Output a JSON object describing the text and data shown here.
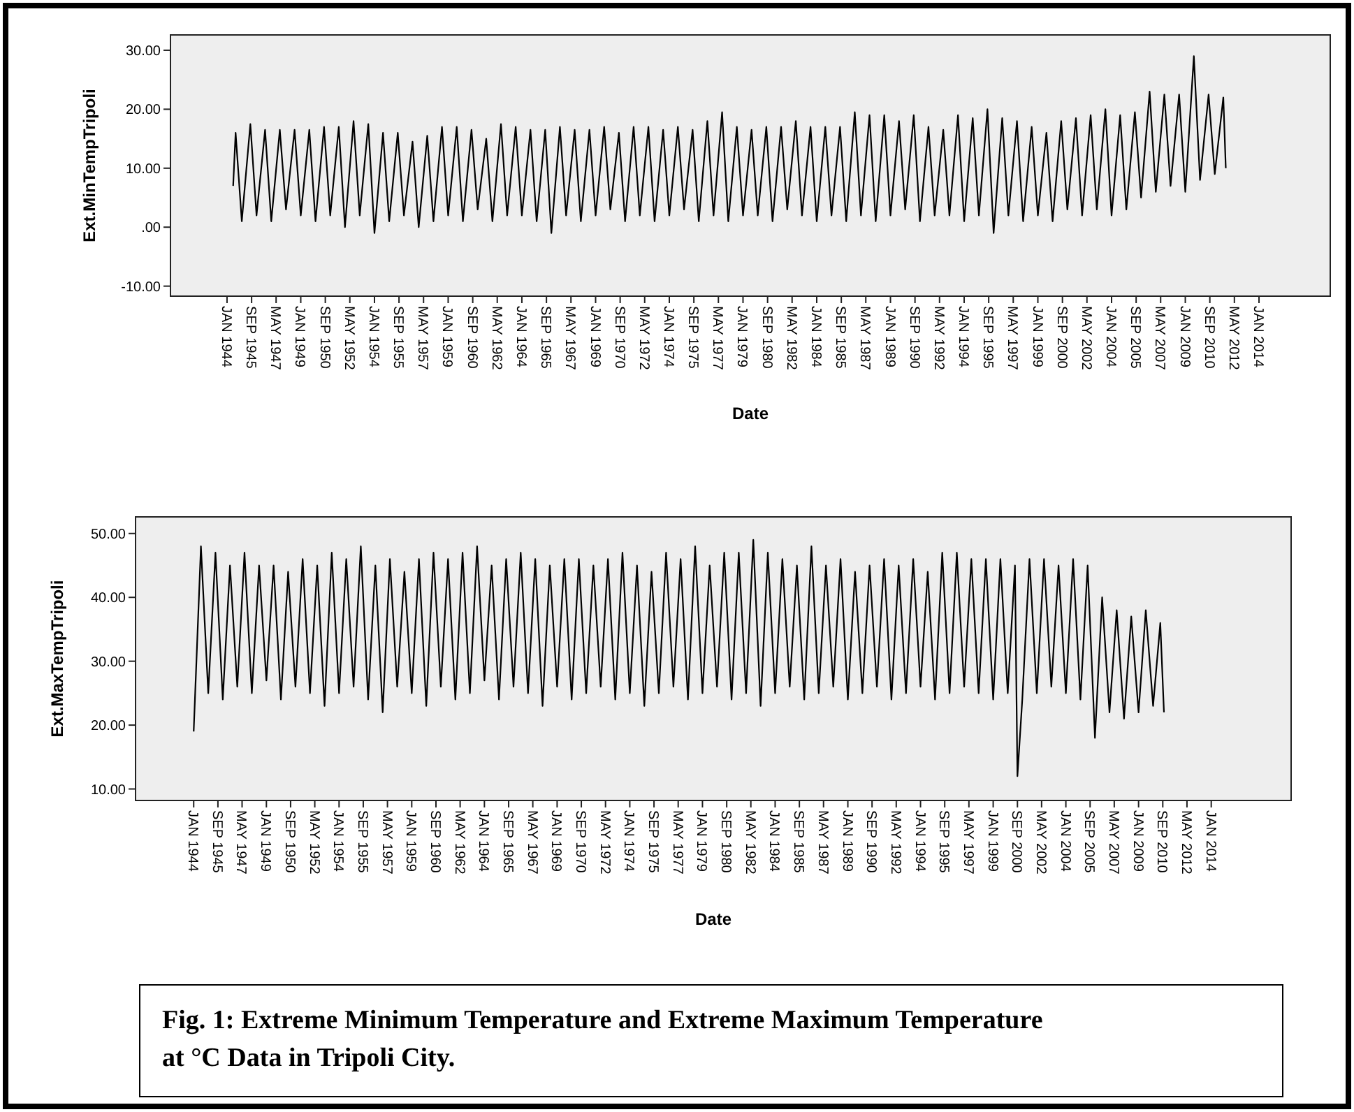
{
  "chart_data": [
    {
      "type": "line",
      "ylabel": "Ext.MinTempTripoli",
      "xlabel": "Date",
      "xlim": [
        "1940-03",
        "2018-11"
      ],
      "ylim": [
        -11.7,
        32.6
      ],
      "yticks": [
        {
          "value": -10,
          "label": "-10.00"
        },
        {
          "value": 0,
          "label": ".00"
        },
        {
          "value": 10,
          "label": "10.00"
        },
        {
          "value": 20,
          "label": "20.00"
        },
        {
          "value": 30,
          "label": "30.00"
        }
      ],
      "xticks": [
        {
          "value": "1944-01",
          "label": "JAN 1944"
        },
        {
          "value": "1945-09",
          "label": "SEP 1945"
        },
        {
          "value": "1947-05",
          "label": "MAY 1947"
        },
        {
          "value": "1949-01",
          "label": "JAN 1949"
        },
        {
          "value": "1950-09",
          "label": "SEP 1950"
        },
        {
          "value": "1952-05",
          "label": "MAY 1952"
        },
        {
          "value": "1954-01",
          "label": "JAN 1954"
        },
        {
          "value": "1955-09",
          "label": "SEP 1955"
        },
        {
          "value": "1957-05",
          "label": "MAY 1957"
        },
        {
          "value": "1959-01",
          "label": "JAN 1959"
        },
        {
          "value": "1960-09",
          "label": "SEP 1960"
        },
        {
          "value": "1962-05",
          "label": "MAY 1962"
        },
        {
          "value": "1964-01",
          "label": "JAN 1964"
        },
        {
          "value": "1965-09",
          "label": "SEP 1965"
        },
        {
          "value": "1967-05",
          "label": "MAY 1967"
        },
        {
          "value": "1969-01",
          "label": "JAN 1969"
        },
        {
          "value": "1970-09",
          "label": "SEP 1970"
        },
        {
          "value": "1972-05",
          "label": "MAY 1972"
        },
        {
          "value": "1974-01",
          "label": "JAN 1974"
        },
        {
          "value": "1975-09",
          "label": "SEP 1975"
        },
        {
          "value": "1977-05",
          "label": "MAY 1977"
        },
        {
          "value": "1979-01",
          "label": "JAN 1979"
        },
        {
          "value": "1980-09",
          "label": "SEP 1980"
        },
        {
          "value": "1982-05",
          "label": "MAY 1982"
        },
        {
          "value": "1984-01",
          "label": "JAN 1984"
        },
        {
          "value": "1985-09",
          "label": "SEP 1985"
        },
        {
          "value": "1987-05",
          "label": "MAY 1987"
        },
        {
          "value": "1989-01",
          "label": "JAN 1989"
        },
        {
          "value": "1990-09",
          "label": "SEP 1990"
        },
        {
          "value": "1992-05",
          "label": "MAY 1992"
        },
        {
          "value": "1994-01",
          "label": "JAN 1994"
        },
        {
          "value": "1995-09",
          "label": "SEP 1995"
        },
        {
          "value": "1997-05",
          "label": "MAY 1997"
        },
        {
          "value": "1999-01",
          "label": "JAN 1999"
        },
        {
          "value": "2000-09",
          "label": "SEP 2000"
        },
        {
          "value": "2002-05",
          "label": "MAY 2002"
        },
        {
          "value": "2004-01",
          "label": "JAN 2004"
        },
        {
          "value": "2005-09",
          "label": "SEP 2005"
        },
        {
          "value": "2007-05",
          "label": "MAY 2007"
        },
        {
          "value": "2009-01",
          "label": "JAN 2009"
        },
        {
          "value": "2010-09",
          "label": "SEP 2010"
        },
        {
          "value": "2012-05",
          "label": "MAY 2012"
        },
        {
          "value": "2014-01",
          "label": "JAN 2014"
        }
      ],
      "x": [
        "1944-06",
        "1944-08",
        "1945-01",
        "1945-08",
        "1946-01",
        "1946-08",
        "1947-01",
        "1947-08",
        "1948-01",
        "1948-08",
        "1949-01",
        "1949-08",
        "1950-01",
        "1950-08",
        "1951-01",
        "1951-08",
        "1952-01",
        "1952-08",
        "1953-01",
        "1953-08",
        "1954-01",
        "1954-08",
        "1955-01",
        "1955-08",
        "1956-01",
        "1956-08",
        "1957-01",
        "1957-08",
        "1958-01",
        "1958-08",
        "1959-01",
        "1959-08",
        "1960-01",
        "1960-08",
        "1961-01",
        "1961-08",
        "1962-01",
        "1962-08",
        "1963-01",
        "1963-08",
        "1964-01",
        "1964-08",
        "1965-01",
        "1965-08",
        "1966-01",
        "1966-08",
        "1967-01",
        "1967-08",
        "1968-01",
        "1968-08",
        "1969-01",
        "1969-08",
        "1970-01",
        "1970-08",
        "1971-01",
        "1971-08",
        "1972-01",
        "1972-08",
        "1973-01",
        "1973-08",
        "1974-01",
        "1974-08",
        "1975-01",
        "1975-08",
        "1976-01",
        "1976-08",
        "1977-01",
        "1977-08",
        "1978-01",
        "1978-08",
        "1979-01",
        "1979-08",
        "1980-01",
        "1980-08",
        "1981-01",
        "1981-08",
        "1982-01",
        "1982-08",
        "1983-01",
        "1983-08",
        "1984-01",
        "1984-08",
        "1985-01",
        "1985-08",
        "1986-01",
        "1986-08",
        "1987-01",
        "1987-08",
        "1988-01",
        "1988-08",
        "1989-01",
        "1989-08",
        "1990-01",
        "1990-08",
        "1991-01",
        "1991-08",
        "1992-01",
        "1992-08",
        "1993-01",
        "1993-08",
        "1994-01",
        "1994-08",
        "1995-01",
        "1995-08",
        "1996-01",
        "1996-08",
        "1997-01",
        "1997-08",
        "1998-01",
        "1998-08",
        "1999-01",
        "1999-08",
        "2000-01",
        "2000-08",
        "2001-01",
        "2001-08",
        "2002-01",
        "2002-08",
        "2003-01",
        "2003-08",
        "2004-01",
        "2004-08",
        "2005-01",
        "2005-08",
        "2006-01",
        "2006-08",
        "2007-01",
        "2007-08",
        "2008-01",
        "2008-08",
        "2009-01",
        "2009-08",
        "2010-01",
        "2010-08",
        "2011-01",
        "2011-08",
        "2011-10"
      ],
      "series": [
        {
          "color": "#000000",
          "values": [
            7,
            16,
            1,
            17.5,
            2,
            16.5,
            1,
            16.5,
            3,
            16.5,
            2,
            16.5,
            1,
            17,
            2,
            17,
            0,
            18,
            2,
            17.5,
            -1,
            16,
            1,
            16,
            2,
            14.5,
            0,
            15.5,
            1,
            17,
            2,
            17,
            1,
            16.5,
            3,
            15,
            1,
            17.5,
            2,
            17,
            2,
            16.5,
            1,
            16.5,
            -1,
            17,
            2,
            16.5,
            1,
            16.5,
            2,
            17,
            3,
            16,
            1,
            17,
            2,
            17,
            1,
            16.5,
            2,
            17,
            3,
            16.5,
            1,
            18,
            2,
            19.5,
            1,
            17,
            2,
            16.5,
            2,
            17,
            1,
            17,
            3,
            18,
            2,
            17,
            1,
            17,
            2,
            17,
            1,
            19.5,
            2,
            19,
            1,
            19,
            2,
            18,
            3,
            19,
            1,
            17,
            2,
            16.5,
            2,
            19,
            1,
            18.5,
            2,
            20,
            -1,
            18.5,
            2,
            18,
            1,
            17,
            2,
            16,
            1,
            18,
            3,
            18.5,
            2,
            19,
            3,
            20,
            2,
            19,
            3,
            19.5,
            5,
            23,
            6,
            22.5,
            7,
            22.5,
            6,
            29,
            8,
            22.5,
            9,
            22,
            10
          ]
        }
      ]
    },
    {
      "type": "line",
      "ylabel": "Ext.MaxTempTripoli",
      "xlabel": "Date",
      "xlim": [
        "1940-01",
        "2019-07"
      ],
      "ylim": [
        8.2,
        52.6
      ],
      "yticks": [
        {
          "value": 10,
          "label": "10.00"
        },
        {
          "value": 20,
          "label": "20.00"
        },
        {
          "value": 30,
          "label": "30.00"
        },
        {
          "value": 40,
          "label": "40.00"
        },
        {
          "value": 50,
          "label": "50.00"
        }
      ],
      "xticks": [
        {
          "value": "1944-01",
          "label": "JAN 1944"
        },
        {
          "value": "1945-09",
          "label": "SEP 1945"
        },
        {
          "value": "1947-05",
          "label": "MAY 1947"
        },
        {
          "value": "1949-01",
          "label": "JAN 1949"
        },
        {
          "value": "1950-09",
          "label": "SEP 1950"
        },
        {
          "value": "1952-05",
          "label": "MAY 1952"
        },
        {
          "value": "1954-01",
          "label": "JAN 1954"
        },
        {
          "value": "1955-09",
          "label": "SEP 1955"
        },
        {
          "value": "1957-05",
          "label": "MAY 1957"
        },
        {
          "value": "1959-01",
          "label": "JAN 1959"
        },
        {
          "value": "1960-09",
          "label": "SEP 1960"
        },
        {
          "value": "1962-05",
          "label": "MAY 1962"
        },
        {
          "value": "1964-01",
          "label": "JAN 1964"
        },
        {
          "value": "1965-09",
          "label": "SEP 1965"
        },
        {
          "value": "1967-05",
          "label": "MAY 1967"
        },
        {
          "value": "1969-01",
          "label": "JAN 1969"
        },
        {
          "value": "1970-09",
          "label": "SEP 1970"
        },
        {
          "value": "1972-05",
          "label": "MAY 1972"
        },
        {
          "value": "1974-01",
          "label": "JAN 1974"
        },
        {
          "value": "1975-09",
          "label": "SEP 1975"
        },
        {
          "value": "1977-05",
          "label": "MAY 1977"
        },
        {
          "value": "1979-01",
          "label": "JAN 1979"
        },
        {
          "value": "1980-09",
          "label": "SEP 1980"
        },
        {
          "value": "1982-05",
          "label": "MAY 1982"
        },
        {
          "value": "1984-01",
          "label": "JAN 1984"
        },
        {
          "value": "1985-09",
          "label": "SEP 1985"
        },
        {
          "value": "1987-05",
          "label": "MAY 1987"
        },
        {
          "value": "1989-01",
          "label": "JAN 1989"
        },
        {
          "value": "1990-09",
          "label": "SEP 1990"
        },
        {
          "value": "1992-05",
          "label": "MAY 1992"
        },
        {
          "value": "1994-01",
          "label": "JAN 1994"
        },
        {
          "value": "1995-09",
          "label": "SEP 1995"
        },
        {
          "value": "1997-05",
          "label": "MAY 1997"
        },
        {
          "value": "1999-01",
          "label": "JAN 1999"
        },
        {
          "value": "2000-09",
          "label": "SEP 2000"
        },
        {
          "value": "2002-05",
          "label": "MAY 2002"
        },
        {
          "value": "2004-01",
          "label": "JAN 2004"
        },
        {
          "value": "2005-09",
          "label": "SEP 2005"
        },
        {
          "value": "2007-05",
          "label": "MAY 2007"
        },
        {
          "value": "2009-01",
          "label": "JAN 2009"
        },
        {
          "value": "2010-09",
          "label": "SEP 2010"
        },
        {
          "value": "2012-05",
          "label": "MAY 2012"
        },
        {
          "value": "2014-01",
          "label": "JAN 2014"
        }
      ],
      "x": [
        "1944-01",
        "1944-07",
        "1945-01",
        "1945-07",
        "1946-01",
        "1946-07",
        "1947-01",
        "1947-07",
        "1948-01",
        "1948-07",
        "1949-01",
        "1949-07",
        "1950-01",
        "1950-07",
        "1951-01",
        "1951-07",
        "1952-01",
        "1952-07",
        "1953-01",
        "1953-07",
        "1954-01",
        "1954-07",
        "1955-01",
        "1955-07",
        "1956-01",
        "1956-07",
        "1957-01",
        "1957-07",
        "1958-01",
        "1958-07",
        "1959-01",
        "1959-07",
        "1960-01",
        "1960-07",
        "1961-01",
        "1961-07",
        "1962-01",
        "1962-07",
        "1963-01",
        "1963-07",
        "1964-01",
        "1964-07",
        "1965-01",
        "1965-07",
        "1966-01",
        "1966-07",
        "1967-01",
        "1967-07",
        "1968-01",
        "1968-07",
        "1969-01",
        "1969-07",
        "1970-01",
        "1970-07",
        "1971-01",
        "1971-07",
        "1972-01",
        "1972-07",
        "1973-01",
        "1973-07",
        "1974-01",
        "1974-07",
        "1975-01",
        "1975-07",
        "1976-01",
        "1976-07",
        "1977-01",
        "1977-07",
        "1978-01",
        "1978-07",
        "1979-01",
        "1979-07",
        "1980-01",
        "1980-07",
        "1981-01",
        "1981-07",
        "1982-01",
        "1982-07",
        "1983-01",
        "1983-07",
        "1984-01",
        "1984-07",
        "1985-01",
        "1985-07",
        "1986-01",
        "1986-07",
        "1987-01",
        "1987-07",
        "1988-01",
        "1988-07",
        "1989-01",
        "1989-07",
        "1990-01",
        "1990-07",
        "1991-01",
        "1991-07",
        "1992-01",
        "1992-07",
        "1993-01",
        "1993-07",
        "1994-01",
        "1994-07",
        "1995-01",
        "1995-07",
        "1996-01",
        "1996-07",
        "1997-01",
        "1997-07",
        "1998-01",
        "1998-07",
        "1999-01",
        "1999-07",
        "2000-01",
        "2000-07",
        "2000-09",
        "2001-01",
        "2001-07",
        "2002-01",
        "2002-07",
        "2003-01",
        "2003-07",
        "2004-01",
        "2004-07",
        "2005-01",
        "2005-07",
        "2006-01",
        "2006-07",
        "2007-01",
        "2007-07",
        "2008-01",
        "2008-07",
        "2009-01",
        "2009-07",
        "2010-01",
        "2010-07",
        "2010-10"
      ],
      "series": [
        {
          "color": "#000000",
          "values": [
            19,
            48,
            25,
            47,
            24,
            45,
            26,
            47,
            25,
            45,
            27,
            45,
            24,
            44,
            26,
            46,
            25,
            45,
            23,
            47,
            25,
            46,
            26,
            48,
            24,
            45,
            22,
            46,
            26,
            44,
            25,
            46,
            23,
            47,
            26,
            46,
            24,
            47,
            25,
            48,
            27,
            45,
            24,
            46,
            26,
            47,
            25,
            46,
            23,
            45,
            26,
            46,
            24,
            46,
            25,
            45,
            26,
            46,
            24,
            47,
            25,
            45,
            23,
            44,
            25,
            47,
            26,
            46,
            24,
            48,
            25,
            45,
            26,
            47,
            24,
            47,
            25,
            49,
            23,
            47,
            25,
            46,
            26,
            45,
            24,
            48,
            25,
            45,
            26,
            46,
            24,
            44,
            25,
            45,
            26,
            46,
            24,
            45,
            25,
            46,
            26,
            44,
            24,
            47,
            25,
            47,
            26,
            46,
            25,
            46,
            24,
            46,
            25,
            45,
            12,
            24,
            46,
            25,
            46,
            26,
            45,
            25,
            46,
            24,
            45,
            18,
            40,
            22,
            38,
            21,
            37,
            22,
            38,
            23,
            36,
            22
          ]
        }
      ],
      "annotations": [
        "Fig. 1: Extreme Minimum Temperature and Extreme Maximum Temperature at °C Data in Tripoli City."
      ]
    }
  ]
}
